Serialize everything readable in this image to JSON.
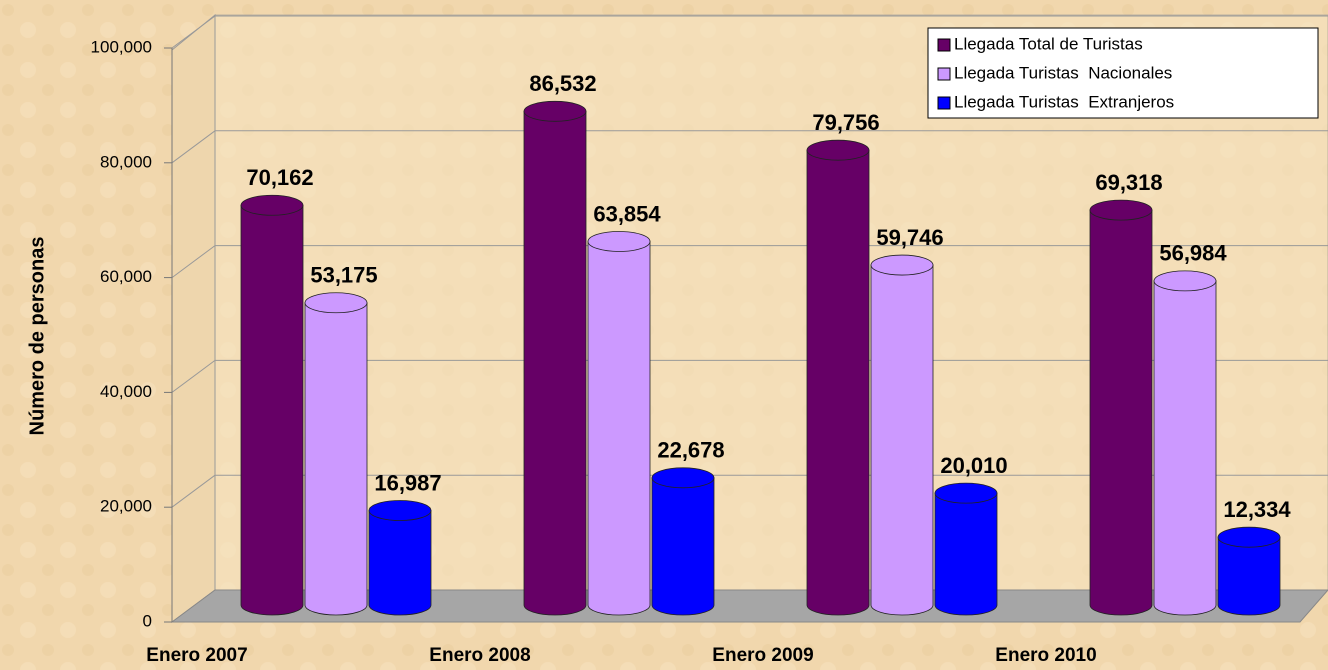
{
  "chart_data": {
    "type": "bar3d",
    "ylabel": "Número de personas",
    "categories": [
      "Enero 2007",
      "Enero 2008",
      "Enero 2009",
      "Enero 2010"
    ],
    "series": [
      {
        "name": "Llegada Total de Turistas",
        "color": "#660066",
        "values": [
          70162,
          86532,
          79756,
          69318
        ],
        "value_labels": [
          "70,162",
          "86,532",
          "79,756",
          "69,318"
        ]
      },
      {
        "name": "Llegada Turistas  Nacionales",
        "color": "#cc99ff",
        "values": [
          53175,
          63854,
          59746,
          56984
        ],
        "value_labels": [
          "53,175",
          "63,854",
          "59,746",
          "56,984"
        ]
      },
      {
        "name": "Llegada Turistas  Extranjeros",
        "color": "#0000ff",
        "values": [
          16987,
          22678,
          20010,
          12334
        ],
        "value_labels": [
          "16,987",
          "22,678",
          "20,010",
          "12,334"
        ]
      }
    ],
    "ylim": [
      0,
      100000
    ],
    "yticks": [
      0,
      {
        "value": 20000,
        "label": "20,000"
      },
      {
        "value": 40000,
        "label": "40,000"
      },
      {
        "value": 60000,
        "label": "60,000"
      },
      {
        "value": 80000,
        "label": "80,000"
      },
      {
        "value": 100000,
        "label": "100,000"
      }
    ],
    "grid": true,
    "legend": "upper right"
  }
}
